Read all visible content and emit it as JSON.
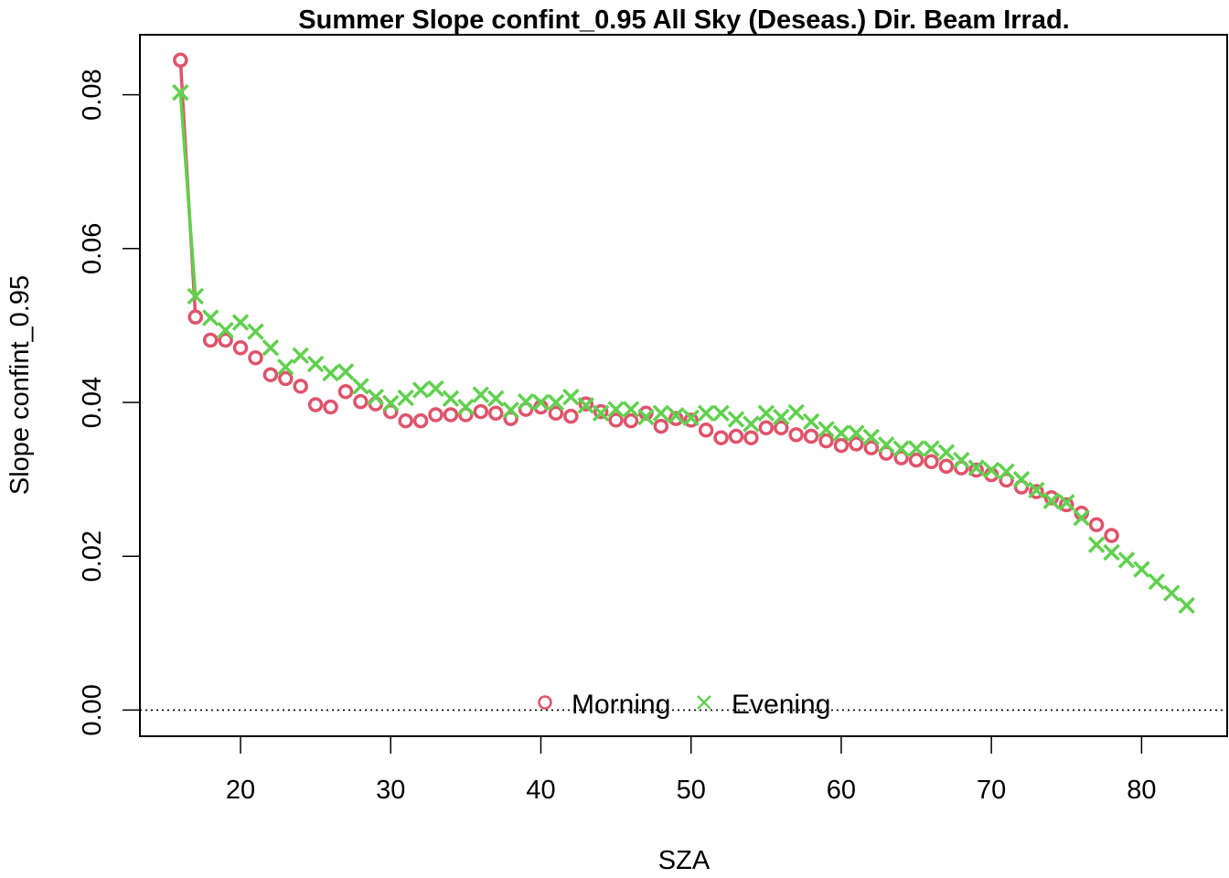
{
  "chart_data": {
    "type": "line",
    "title": "Summer Slope confint_0.95 All Sky (Deseas.) Dir. Beam Irrad.",
    "xlabel": "SZA",
    "ylabel": "Slope confint_0.95",
    "xlim": [
      13.3,
      85.7
    ],
    "ylim": [
      -0.0034,
      0.0878
    ],
    "xticks": [
      "20",
      "30",
      "40",
      "50",
      "60",
      "70",
      "80"
    ],
    "yticks": [
      "0.00",
      "0.02",
      "0.04",
      "0.06",
      "0.08"
    ],
    "grid": false,
    "legend_position": "bottom-center",
    "reference_line": {
      "y": 0,
      "style": "dotted"
    },
    "series": [
      {
        "name": "Morning",
        "color": "#DF536B",
        "marker": "circle",
        "x": [
          16,
          17,
          18,
          19,
          20,
          21,
          22,
          23,
          24,
          25,
          26,
          27,
          28,
          29,
          30,
          31,
          32,
          33,
          34,
          35,
          36,
          37,
          38,
          39,
          40,
          41,
          42,
          43,
          44,
          45,
          46,
          47,
          48,
          49,
          50,
          51,
          52,
          53,
          54,
          55,
          56,
          57,
          58,
          59,
          60,
          61,
          62,
          63,
          64,
          65,
          66,
          67,
          68,
          69,
          70,
          71,
          72,
          73,
          74,
          75,
          76,
          77,
          78
        ],
        "y": [
          0.0845,
          0.0511,
          0.0481,
          0.0481,
          0.0471,
          0.0458,
          0.0436,
          0.0431,
          0.0421,
          0.0397,
          0.0394,
          0.0414,
          0.0401,
          0.0398,
          0.0388,
          0.0376,
          0.0376,
          0.0384,
          0.0384,
          0.0384,
          0.0388,
          0.0386,
          0.0379,
          0.0391,
          0.0394,
          0.0386,
          0.0382,
          0.0398,
          0.0388,
          0.0377,
          0.0376,
          0.0386,
          0.0369,
          0.0379,
          0.0377,
          0.0364,
          0.0354,
          0.0356,
          0.0354,
          0.0367,
          0.0367,
          0.0358,
          0.0356,
          0.035,
          0.0344,
          0.0346,
          0.0341,
          0.0334,
          0.0328,
          0.0325,
          0.0323,
          0.0317,
          0.0315,
          0.0312,
          0.0306,
          0.0299,
          0.029,
          0.0284,
          0.0276,
          0.0267,
          0.0256,
          0.0241,
          0.0227
        ]
      },
      {
        "name": "Evening",
        "color": "#61D04F",
        "marker": "cross",
        "x": [
          16,
          17,
          18,
          19,
          20,
          21,
          22,
          23,
          24,
          25,
          26,
          27,
          28,
          29,
          30,
          31,
          32,
          33,
          34,
          35,
          36,
          37,
          38,
          39,
          40,
          41,
          42,
          43,
          44,
          45,
          46,
          47,
          48,
          49,
          50,
          51,
          52,
          53,
          54,
          55,
          56,
          57,
          58,
          59,
          60,
          61,
          62,
          63,
          64,
          65,
          66,
          67,
          68,
          69,
          70,
          71,
          72,
          73,
          74,
          75,
          76,
          77,
          78,
          79,
          80,
          81,
          82,
          83
        ],
        "y": [
          0.0803,
          0.0538,
          0.051,
          0.0494,
          0.0504,
          0.0492,
          0.0471,
          0.0446,
          0.0461,
          0.045,
          0.0438,
          0.044,
          0.0421,
          0.0407,
          0.0399,
          0.0406,
          0.0416,
          0.0418,
          0.0405,
          0.0394,
          0.041,
          0.0405,
          0.039,
          0.0401,
          0.04,
          0.04,
          0.0407,
          0.0396,
          0.0386,
          0.0391,
          0.0391,
          0.0381,
          0.0386,
          0.0383,
          0.038,
          0.0386,
          0.0386,
          0.0378,
          0.0372,
          0.0386,
          0.0381,
          0.0387,
          0.0375,
          0.0365,
          0.036,
          0.036,
          0.0355,
          0.0345,
          0.034,
          0.034,
          0.034,
          0.0335,
          0.0325,
          0.0315,
          0.0312,
          0.031,
          0.03,
          0.0286,
          0.0272,
          0.027,
          0.025,
          0.0215,
          0.0205,
          0.0195,
          0.0183,
          0.0167,
          0.0152,
          0.0136
        ]
      }
    ]
  }
}
